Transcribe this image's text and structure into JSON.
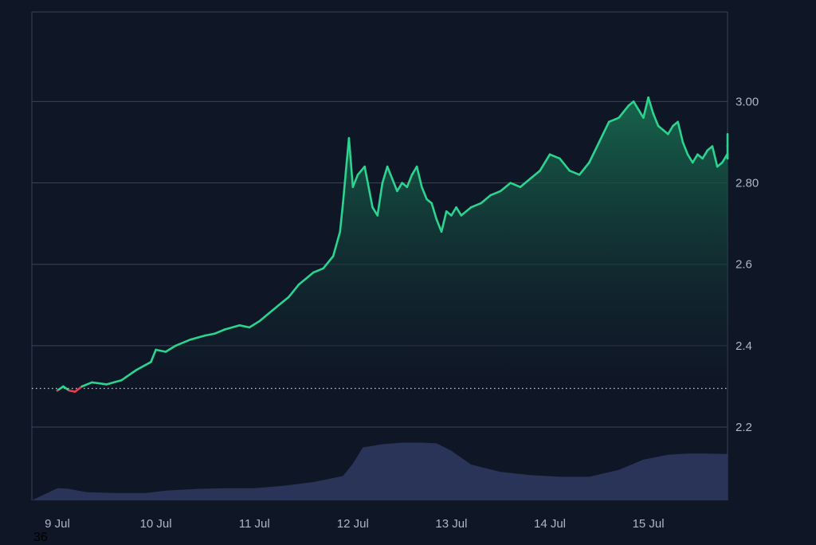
{
  "chart_data": {
    "type": "line",
    "title": "",
    "xlabel": "",
    "ylabel": "",
    "x_tick_labels": [
      "9 Jul",
      "10 Jul",
      "11 Jul",
      "12 Jul",
      "13 Jul",
      "14 Jul",
      "15 Jul"
    ],
    "y_tick_labels": [
      "2.2",
      "2.4",
      "2.6",
      "2.80",
      "3.00"
    ],
    "y_ticks": [
      2.2,
      2.4,
      2.6,
      2.8,
      3.0
    ],
    "ylim": [
      2.02,
      3.22
    ],
    "xlim": [
      0,
      7.05
    ],
    "baseline": 2.295,
    "grid": true,
    "y_axis_position": "right",
    "colors": {
      "background": "#0f1626",
      "grid": "#3a4357",
      "line_up": "#2bd48f",
      "line_down": "#e8414d",
      "area_top": "#17694e",
      "volume": "#2a3459",
      "baseline": "#c9ced8",
      "ticks": "#aeb6c6"
    },
    "series": [
      {
        "x": [
          0,
          0.06,
          0.12,
          0.18,
          0.25,
          0.35,
          0.5,
          0.65,
          0.8,
          0.95,
          1.0,
          1.1,
          1.2,
          1.35,
          1.5,
          1.6,
          1.7,
          1.85,
          1.95,
          2.05,
          2.15,
          2.25,
          2.35,
          2.45,
          2.55,
          2.6,
          2.7,
          2.8,
          2.87,
          2.9,
          2.93,
          2.96,
          3.0,
          3.05,
          3.12,
          3.2,
          3.25,
          3.3,
          3.35,
          3.4,
          3.45,
          3.5,
          3.55,
          3.6,
          3.65,
          3.7,
          3.75,
          3.8,
          3.85,
          3.9,
          3.95,
          4.0,
          4.05,
          4.1,
          4.2,
          4.3,
          4.4,
          4.5,
          4.6,
          4.7,
          4.8,
          4.9,
          5.0,
          5.1,
          5.2,
          5.3,
          5.4,
          5.5,
          5.6,
          5.7,
          5.8,
          5.85,
          5.9,
          5.95,
          6.0,
          6.05,
          6.1,
          6.15,
          6.2,
          6.25,
          6.3,
          6.35,
          6.4,
          6.45,
          6.5,
          6.55,
          6.6,
          6.65,
          6.7,
          6.75,
          6.8,
          6.85,
          6.9,
          6.95,
          7.0,
          7.05
        ],
        "y": [
          2.29,
          2.3,
          2.29,
          2.287,
          2.3,
          2.31,
          2.305,
          2.315,
          2.34,
          2.36,
          2.39,
          2.385,
          2.4,
          2.415,
          2.425,
          2.43,
          2.44,
          2.45,
          2.445,
          2.46,
          2.48,
          2.5,
          2.52,
          2.55,
          2.57,
          2.58,
          2.59,
          2.62,
          2.68,
          2.75,
          2.83,
          2.91,
          2.79,
          2.82,
          2.84,
          2.74,
          2.72,
          2.8,
          2.84,
          2.81,
          2.78,
          2.8,
          2.79,
          2.82,
          2.84,
          2.79,
          2.76,
          2.75,
          2.71,
          2.68,
          2.73,
          2.72,
          2.74,
          2.72,
          2.74,
          2.75,
          2.77,
          2.78,
          2.8,
          2.79,
          2.81,
          2.83,
          2.87,
          2.86,
          2.83,
          2.82,
          2.85,
          2.9,
          2.95,
          2.96,
          2.99,
          3.0,
          2.98,
          2.96,
          3.01,
          2.97,
          2.94,
          2.93,
          2.92,
          2.94,
          2.95,
          2.9,
          2.87,
          2.85,
          2.87,
          2.86,
          2.88,
          2.89,
          2.84,
          2.85,
          2.87,
          2.86,
          2.86,
          2.87,
          2.89,
          2.92
        ]
      },
      {
        "name": "volume",
        "x": [
          0,
          0.1,
          0.3,
          0.6,
          0.9,
          1.1,
          1.4,
          1.7,
          2.0,
          2.3,
          2.6,
          2.9,
          3.0,
          3.1,
          3.3,
          3.5,
          3.7,
          3.85,
          4.0,
          4.2,
          4.5,
          4.8,
          5.1,
          5.4,
          5.7,
          5.95,
          6.2,
          6.4,
          6.6,
          6.8,
          7.0,
          7.05
        ],
        "y": [
          0.03,
          0.029,
          0.02,
          0.018,
          0.018,
          0.024,
          0.028,
          0.03,
          0.03,
          0.036,
          0.045,
          0.06,
          0.09,
          0.13,
          0.138,
          0.142,
          0.142,
          0.14,
          0.122,
          0.088,
          0.07,
          0.062,
          0.058,
          0.058,
          0.075,
          0.1,
          0.112,
          0.115,
          0.115,
          0.114,
          0.105,
          0.1
        ]
      }
    ]
  },
  "stray_label": "36"
}
